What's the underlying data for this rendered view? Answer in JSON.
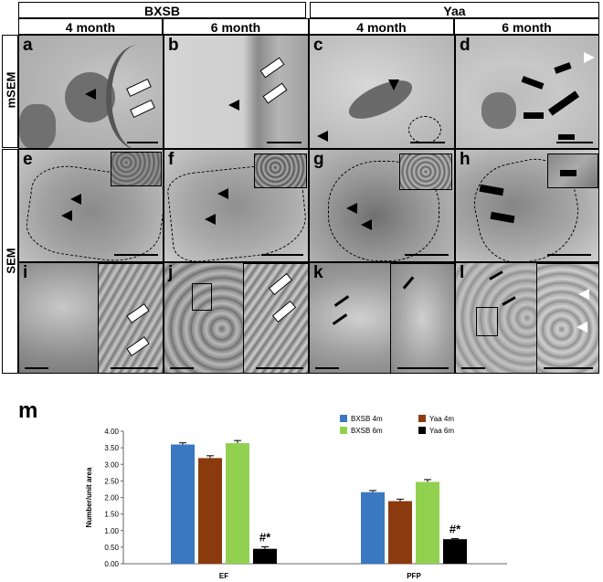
{
  "headers": {
    "groups": [
      "BXSB",
      "Yaa"
    ],
    "columns": [
      "4 month",
      "6 month",
      "4 month",
      "6 month"
    ],
    "rows": [
      "mSEM",
      "SEM"
    ]
  },
  "panels": [
    "a",
    "b",
    "c",
    "d",
    "e",
    "f",
    "g",
    "h",
    "i",
    "j",
    "k",
    "l"
  ],
  "figure_label": "m",
  "chart_data": {
    "type": "bar",
    "categories": [
      "EF",
      "PFP"
    ],
    "series": [
      {
        "name": "BXSB 4m",
        "values": [
          3.6,
          2.16
        ],
        "errors": [
          0.05,
          0.05
        ],
        "color": "#3a78c2"
      },
      {
        "name": "Yaa 4m",
        "values": [
          3.19,
          1.89
        ],
        "errors": [
          0.07,
          0.06
        ],
        "color": "#8b3a0e"
      },
      {
        "name": "BXSB 6m",
        "values": [
          3.64,
          2.47
        ],
        "errors": [
          0.08,
          0.07
        ],
        "color": "#92d050"
      },
      {
        "name": "Yaa 6m",
        "values": [
          0.45,
          0.74
        ],
        "errors": [
          0.06,
          0.02
        ],
        "color": "#000000"
      }
    ],
    "annotations": [
      "#*",
      "#*"
    ],
    "ylabel": "Number/unit area",
    "xlabel": "",
    "ylim": [
      0,
      4
    ],
    "yticks": [
      "0.00",
      "0.50",
      "1.00",
      "1.50",
      "2.00",
      "2.50",
      "3.00",
      "3.50",
      "4.00"
    ],
    "legend_placement": "top-right",
    "grid": false
  }
}
